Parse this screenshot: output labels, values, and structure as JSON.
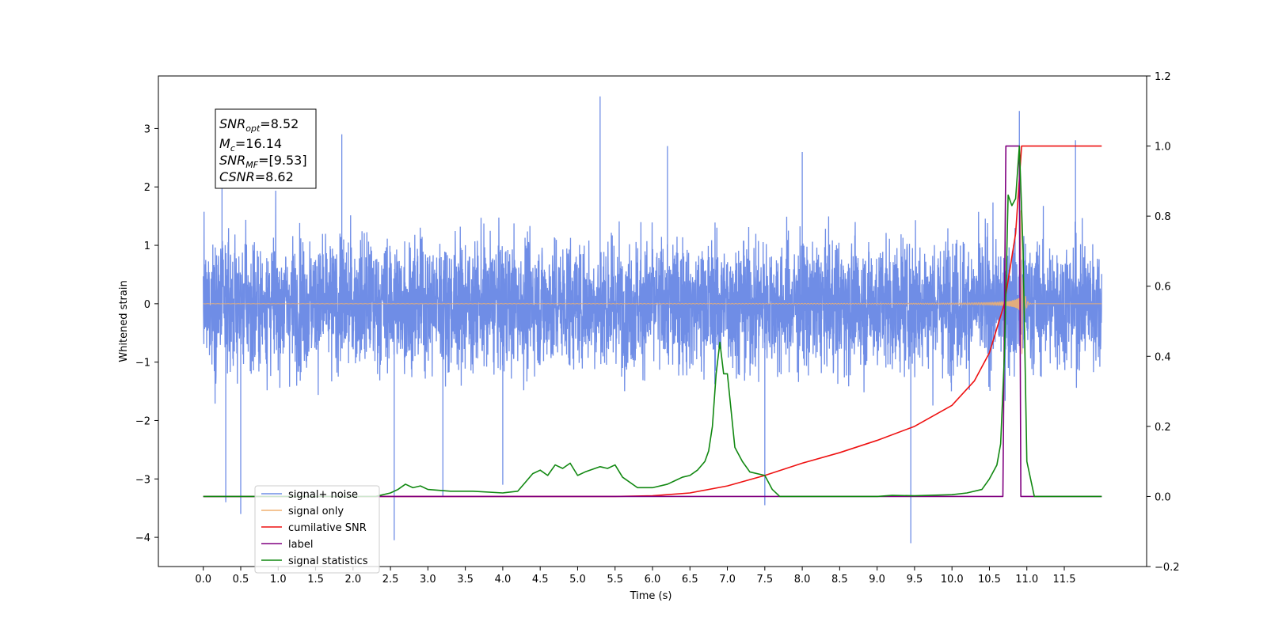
{
  "chart_data": {
    "type": "line",
    "xlabel": "Time (s)",
    "ylabel": "Whitened strain",
    "xlim": [
      -0.6,
      12.6
    ],
    "ylim": [
      -4.5,
      3.9
    ],
    "y2lim": [
      -0.2,
      1.2
    ],
    "x_ticks": [
      "0.0",
      "0.5",
      "1.0",
      "1.5",
      "2.0",
      "2.5",
      "3.0",
      "3.5",
      "4.0",
      "4.5",
      "5.0",
      "5.5",
      "6.0",
      "6.5",
      "7.0",
      "7.5",
      "8.0",
      "8.5",
      "9.0",
      "9.5",
      "10.0",
      "10.5",
      "11.0",
      "11.5"
    ],
    "y_ticks": [
      "3",
      "2",
      "1",
      "0",
      "−1",
      "−2",
      "−3",
      "−4"
    ],
    "y2_ticks": [
      "1.2",
      "1.0",
      "0.8",
      "0.6",
      "0.4",
      "0.2",
      "0.0",
      "−0.2"
    ],
    "annotation": {
      "snr_opt": "=8.52",
      "mc": "=16.14",
      "snr_mf": "=[9.53]",
      "csnr": "=8.62"
    },
    "legend": {
      "placement": "lower-left",
      "entries": [
        "signal+ noise",
        "signal only",
        "cumilative SNR",
        "label",
        "signal statistics"
      ]
    },
    "series": [
      {
        "name": "signal+ noise",
        "color": "#6f8de6",
        "axis": "left",
        "x_range": [
          0.0,
          12.0
        ],
        "amplitude": 1.3,
        "spikes": [
          [
            0.3,
            -3.4
          ],
          [
            0.5,
            -3.6
          ],
          [
            0.25,
            2.5
          ],
          [
            2.55,
            -4.05
          ],
          [
            3.2,
            -3.3
          ],
          [
            5.3,
            3.55
          ],
          [
            9.45,
            -4.1
          ],
          [
            10.9,
            3.3
          ],
          [
            11.65,
            2.8
          ],
          [
            7.5,
            -3.45
          ],
          [
            1.85,
            2.9
          ],
          [
            4.0,
            -3.1
          ],
          [
            8.0,
            2.6
          ],
          [
            6.2,
            2.7
          ]
        ]
      },
      {
        "name": "signal only",
        "color": "#f0b070",
        "axis": "left",
        "x_range": [
          0.0,
          12.0
        ],
        "merger_time": 10.92
      },
      {
        "name": "cumilative SNR",
        "color": "#ee1111",
        "axis": "right",
        "x": [
          0,
          5.5,
          6.0,
          6.5,
          7.0,
          7.5,
          8.0,
          8.5,
          9.0,
          9.5,
          10.0,
          10.3,
          10.5,
          10.7,
          10.85,
          10.93,
          12.0
        ],
        "y": [
          0,
          0,
          0.002,
          0.01,
          0.03,
          0.06,
          0.095,
          0.125,
          0.16,
          0.2,
          0.26,
          0.33,
          0.41,
          0.55,
          0.75,
          1.0,
          1.0
        ]
      },
      {
        "name": "label",
        "color": "#800080",
        "axis": "right",
        "x": [
          0,
          10.68,
          10.72,
          10.9,
          10.92,
          12.0
        ],
        "y": [
          0,
          0,
          1.0,
          1.0,
          0,
          0
        ]
      },
      {
        "name": "signal statistics",
        "color": "#118811",
        "axis": "right",
        "x": [
          0,
          2.3,
          2.5,
          2.6,
          2.7,
          2.8,
          2.9,
          3.0,
          3.3,
          3.6,
          4.0,
          4.2,
          4.3,
          4.4,
          4.5,
          4.6,
          4.7,
          4.8,
          4.9,
          5.0,
          5.1,
          5.3,
          5.4,
          5.5,
          5.6,
          5.8,
          6.0,
          6.2,
          6.3,
          6.4,
          6.5,
          6.6,
          6.7,
          6.75,
          6.8,
          6.85,
          6.9,
          6.95,
          7.0,
          7.1,
          7.2,
          7.3,
          7.5,
          7.6,
          7.7,
          8.0,
          9.0,
          9.2,
          9.5,
          10.0,
          10.2,
          10.4,
          10.5,
          10.6,
          10.65,
          10.7,
          10.75,
          10.8,
          10.85,
          10.9,
          10.95,
          11.0,
          11.1,
          12.0
        ],
        "y": [
          0,
          0,
          0.01,
          0.02,
          0.035,
          0.025,
          0.03,
          0.02,
          0.015,
          0.015,
          0.01,
          0.015,
          0.04,
          0.065,
          0.075,
          0.06,
          0.09,
          0.08,
          0.095,
          0.06,
          0.07,
          0.085,
          0.08,
          0.09,
          0.055,
          0.025,
          0.025,
          0.035,
          0.045,
          0.055,
          0.06,
          0.075,
          0.1,
          0.13,
          0.2,
          0.35,
          0.44,
          0.35,
          0.35,
          0.14,
          0.1,
          0.07,
          0.06,
          0.02,
          0.0,
          0.0,
          0.0,
          0.003,
          0.002,
          0.005,
          0.01,
          0.02,
          0.05,
          0.09,
          0.15,
          0.4,
          0.86,
          0.83,
          0.85,
          1.0,
          0.7,
          0.1,
          0.0,
          0.0
        ]
      }
    ]
  }
}
